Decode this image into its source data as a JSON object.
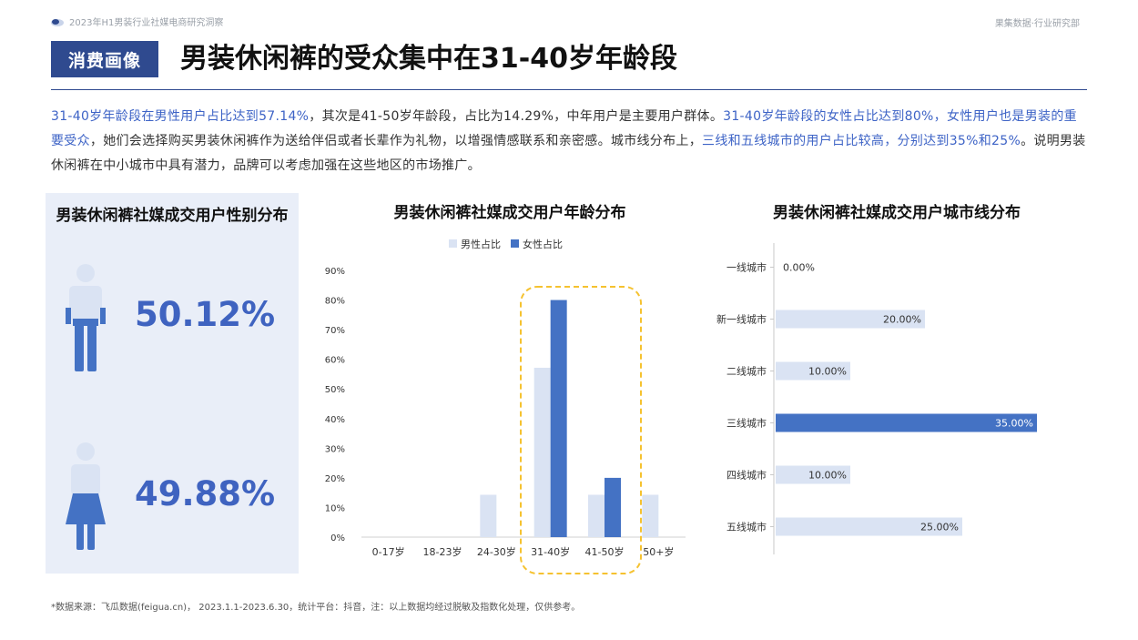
{
  "header": {
    "report_title": "2023年H1男装行业社媒电商研究洞察",
    "org": "果集数据·行业研究部",
    "section_tag": "消费画像",
    "headline": "男装休闲裤的受众集中在31-40岁年龄段"
  },
  "summary": [
    {
      "t": "31-40岁年龄段在男性用户占比达到57.14%",
      "hl": true
    },
    {
      "t": "，其次是41-50岁年龄段，占比为14.29%，中年用户是主要用户群体。",
      "hl": false
    },
    {
      "t": "31-40岁年龄段的女性占比达到80%，女性用户也是男装的重要受众",
      "hl": true
    },
    {
      "t": "，她们会选择购买男装休闲裤作为送给伴侣或者长辈作为礼物，以增强情感联系和亲密感。城市线分布上，",
      "hl": false
    },
    {
      "t": "三线和五线城市的用户占比较高，分别达到35%和25%",
      "hl": true
    },
    {
      "t": "。说明男装休闲裤在中小城市中具有潜力，品牌可以考虑加强在这些地区的市场推广。",
      "hl": false
    }
  ],
  "footnote": "*数据来源：飞瓜数据(feigua.cn)， 2023.1.1-2023.6.30，统计平台：抖音，注：以上数据均经过脱敏及指数化处理，仅供参考。",
  "colors": {
    "accent": "#4472c4",
    "light": "#dae3f3",
    "tag": "#2f4a8f",
    "highlight_box": "#f5c230"
  },
  "chart_data": [
    {
      "type": "pictograph",
      "title": "男装休闲裤社媒成交用户性别分布",
      "male_pct": "50.12%",
      "female_pct": "49.88%"
    },
    {
      "type": "bar",
      "title": "男装休闲裤社媒成交用户年龄分布",
      "categories": [
        "0-17岁",
        "18-23岁",
        "24-30岁",
        "31-40岁",
        "41-50岁",
        "50+岁"
      ],
      "series": [
        {
          "name": "男性占比",
          "values": [
            0,
            0,
            14.29,
            57.14,
            14.29,
            14.29
          ]
        },
        {
          "name": "女性占比",
          "values": [
            0,
            0,
            0,
            80,
            20,
            0
          ]
        }
      ],
      "yticks": [
        "0%",
        "10%",
        "20%",
        "30%",
        "40%",
        "50%",
        "60%",
        "70%",
        "80%",
        "90%"
      ],
      "ylim": [
        0,
        90
      ],
      "legend": "top"
    },
    {
      "type": "hbar",
      "title": "男装休闲裤社媒成交用户城市线分布",
      "categories": [
        "一线城市",
        "新一线城市",
        "二线城市",
        "三线城市",
        "四线城市",
        "五线城市"
      ],
      "values": [
        0,
        20,
        10,
        35,
        10,
        25
      ],
      "labels": [
        "0.00%",
        "20.00%",
        "10.00%",
        "35.00%",
        "10.00%",
        "25.00%"
      ],
      "highlight_index": 3
    }
  ]
}
